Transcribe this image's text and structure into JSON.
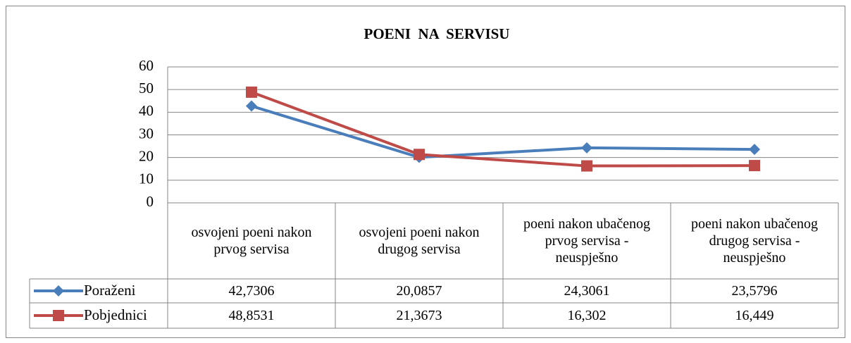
{
  "chart_data": {
    "type": "line",
    "title": "POENI  NA  SERVISU",
    "categories": [
      "osvojeni poeni nakon prvog servisa",
      "osvojeni poeni nakon drugog servisa",
      "poeni  nakon ubačenog prvog servisa - neuspješno",
      "poeni  nakon ubačenog drugog servisa - neuspješno"
    ],
    "series": [
      {
        "name": "Poraženi",
        "color": "#4a7ebb",
        "marker": "diamond",
        "values": [
          42.7306,
          20.0857,
          24.3061,
          23.5796
        ],
        "value_labels": [
          "42,7306",
          "20,0857",
          "24,3061",
          "23,5796"
        ]
      },
      {
        "name": "Pobjednici",
        "color": "#be4b48",
        "marker": "square",
        "values": [
          48.8531,
          21.3673,
          16.302,
          16.449
        ],
        "value_labels": [
          "48,8531",
          "21,3673",
          "16,302",
          "16,449"
        ]
      }
    ],
    "ylim": [
      0,
      60
    ],
    "yticks": [
      0,
      10,
      20,
      30,
      40,
      50,
      60
    ],
    "grid": true
  }
}
